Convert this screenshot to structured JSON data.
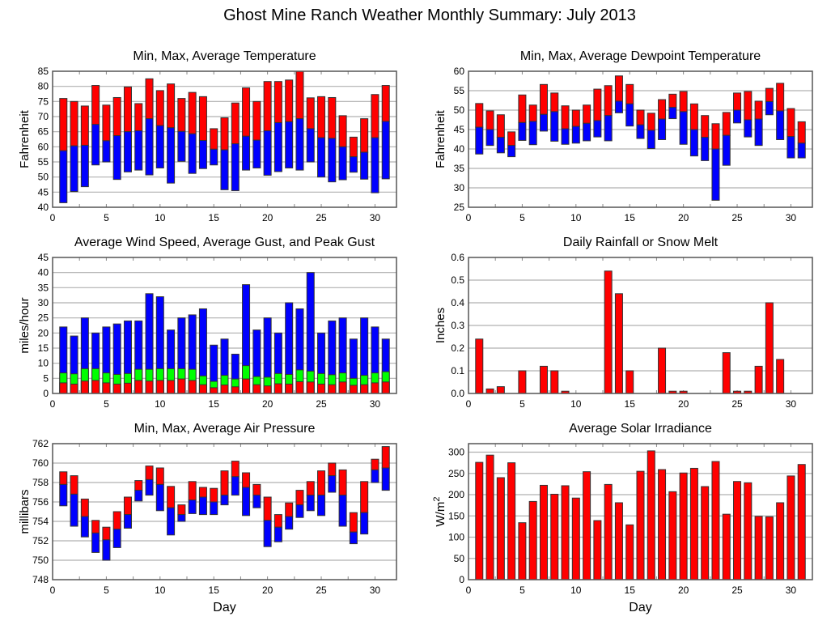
{
  "page": {
    "title": "Ghost Mine Ranch Weather Monthly Summary: July 2013"
  },
  "colors": {
    "red": "#ff0000",
    "blue": "#0000ff",
    "green": "#00ff00",
    "grid": "#b0b0b0",
    "frame": "#555555",
    "bar_outline": "#333333"
  },
  "chart_data": [
    {
      "id": "temperature",
      "type": "bar",
      "subtype": "floating-range",
      "title": "Min, Max, Average Temperature",
      "xlabel": "",
      "ylabel": "Fahrenheit",
      "xlim": [
        0,
        32
      ],
      "ylim": [
        40,
        85
      ],
      "xticks": [
        0,
        5,
        10,
        15,
        20,
        25,
        30
      ],
      "yticks": [
        40,
        45,
        50,
        55,
        60,
        65,
        70,
        75,
        80,
        85
      ],
      "grid": true,
      "x": [
        1,
        2,
        3,
        4,
        5,
        6,
        7,
        8,
        9,
        10,
        11,
        12,
        13,
        14,
        15,
        16,
        17,
        18,
        19,
        20,
        21,
        22,
        23,
        24,
        25,
        26,
        27,
        28,
        29,
        30,
        31
      ],
      "series": [
        {
          "name": "Max",
          "color": "red",
          "values": [
            76,
            75,
            73.5,
            80.3,
            73.8,
            76.3,
            79.8,
            74.3,
            82.5,
            78.6,
            80.8,
            76,
            78,
            76.6,
            66,
            69.6,
            74.5,
            79.5,
            75,
            81.6,
            81.6,
            82.1,
            85,
            76.2,
            76.6,
            76.3,
            70.3,
            63.2,
            69.3,
            77.3,
            80.3
          ]
        },
        {
          "name": "Average",
          "color": "blue",
          "values": [
            58.7,
            60.3,
            60.5,
            67.4,
            62,
            63.7,
            65,
            65.3,
            69.3,
            67,
            66.3,
            65.1,
            64.3,
            62.1,
            59.2,
            59,
            61,
            63.5,
            62.2,
            65.3,
            68,
            68.3,
            69.3,
            66,
            63,
            62.8,
            60,
            56.7,
            58.2,
            63,
            68.4
          ]
        },
        {
          "name": "Min",
          "color": "blue",
          "values": [
            41.5,
            45.2,
            46.8,
            54,
            55,
            49.2,
            51.7,
            52.3,
            50.7,
            53,
            48,
            55.2,
            51.2,
            52.8,
            54,
            45.8,
            45.5,
            52.3,
            53,
            50.6,
            51.8,
            53,
            52.3,
            55,
            50,
            48.4,
            49.1,
            51.6,
            49.3,
            44.8,
            49.4
          ]
        }
      ]
    },
    {
      "id": "dewpoint",
      "type": "bar",
      "subtype": "floating-range",
      "title": "Min, Max, Average Dewpoint Temperature",
      "xlabel": "",
      "ylabel": "Fahrenheit",
      "xlim": [
        0,
        32
      ],
      "ylim": [
        25,
        60
      ],
      "xticks": [
        0,
        5,
        10,
        15,
        20,
        25,
        30
      ],
      "yticks": [
        25,
        30,
        35,
        40,
        45,
        50,
        55,
        60
      ],
      "grid": true,
      "x": [
        1,
        2,
        3,
        4,
        5,
        6,
        7,
        8,
        9,
        10,
        11,
        12,
        13,
        14,
        15,
        16,
        17,
        18,
        19,
        20,
        21,
        22,
        23,
        24,
        25,
        26,
        27,
        28,
        29,
        30,
        31
      ],
      "series": [
        {
          "name": "Max",
          "color": "red",
          "values": [
            51.7,
            49.8,
            48.8,
            44.4,
            53.9,
            51.3,
            56.6,
            54.4,
            51.1,
            50,
            51.3,
            55.4,
            56.3,
            58.8,
            56.6,
            50,
            49.2,
            52.7,
            54.1,
            54.8,
            51.6,
            48.6,
            46.5,
            49.4,
            54.4,
            54.8,
            52.3,
            55.6,
            56.9,
            50.4,
            47
          ]
        },
        {
          "name": "Average",
          "color": "blue",
          "values": [
            45.6,
            45,
            43,
            40.9,
            46.8,
            47.1,
            48.9,
            49.6,
            45.2,
            45.8,
            46.6,
            47.3,
            48.6,
            52.3,
            51.6,
            46.2,
            44.8,
            47.7,
            50.7,
            49.6,
            45,
            43,
            40,
            43.5,
            50,
            47.5,
            47.7,
            52.2,
            49.8,
            43.2,
            41.5
          ]
        },
        {
          "name": "Min",
          "color": "blue",
          "values": [
            38.7,
            40.9,
            39,
            38,
            42.2,
            41.1,
            44.6,
            42,
            41.2,
            41.5,
            42.1,
            43.1,
            42.1,
            49.3,
            45.9,
            42.7,
            40.1,
            42.4,
            47.8,
            41.2,
            38.2,
            37,
            26.8,
            35.8,
            46.7,
            43.1,
            40.9,
            48.8,
            42.4,
            37.7,
            37.7
          ]
        }
      ]
    },
    {
      "id": "wind",
      "type": "bar",
      "subtype": "overlaid",
      "title": "Average Wind Speed, Average Gust, and Peak Gust",
      "xlabel": "",
      "ylabel": "miles/hour",
      "xlim": [
        0,
        32
      ],
      "ylim": [
        0,
        45
      ],
      "xticks": [
        0,
        5,
        10,
        15,
        20,
        25,
        30
      ],
      "yticks": [
        0,
        5,
        10,
        15,
        20,
        25,
        30,
        35,
        40,
        45
      ],
      "grid": true,
      "x": [
        1,
        2,
        3,
        4,
        5,
        6,
        7,
        8,
        9,
        10,
        11,
        12,
        13,
        14,
        15,
        16,
        17,
        18,
        19,
        20,
        21,
        22,
        23,
        24,
        25,
        26,
        27,
        28,
        29,
        30,
        31
      ],
      "series": [
        {
          "name": "Peak Gust",
          "color": "blue",
          "values": [
            22,
            19,
            25,
            20,
            22,
            23,
            24,
            24,
            33,
            32,
            21,
            25,
            26,
            28,
            16,
            18,
            13,
            36,
            21,
            25,
            20,
            30,
            28,
            40,
            20,
            24,
            25,
            18,
            25,
            22,
            18
          ]
        },
        {
          "name": "Average Gust",
          "color": "green",
          "values": [
            6.8,
            6.5,
            8.2,
            8.2,
            6.8,
            6.3,
            6.6,
            8,
            8,
            8.2,
            8.2,
            8.2,
            8,
            5.8,
            4,
            6,
            4.8,
            9.2,
            5.6,
            5.4,
            6.6,
            6.3,
            7.8,
            7.4,
            6.6,
            6.2,
            6.8,
            5,
            6,
            6.8,
            7.2
          ]
        },
        {
          "name": "Average Wind Speed",
          "color": "red",
          "values": [
            3.5,
            3.1,
            4.1,
            4.3,
            3.5,
            3.1,
            3.4,
            4.3,
            4.1,
            4.3,
            4.3,
            4.8,
            4.3,
            2.9,
            1.9,
            2.8,
            2.2,
            4.8,
            2.9,
            2.5,
            3.2,
            3.1,
            3.9,
            3.8,
            3.1,
            2.9,
            3.8,
            2.7,
            2.9,
            3.5,
            3.8
          ]
        }
      ]
    },
    {
      "id": "rainfall",
      "type": "bar",
      "title": "Daily Rainfall or Snow Melt",
      "xlabel": "",
      "ylabel": "Inches",
      "xlim": [
        0,
        32
      ],
      "ylim": [
        0,
        0.6
      ],
      "xticks": [
        0,
        5,
        10,
        15,
        20,
        25,
        30
      ],
      "yticks": [
        0,
        0.1,
        0.2,
        0.3,
        0.4,
        0.5,
        0.6
      ],
      "ytick_labels": [
        "0.0",
        "0.1",
        "0.2",
        "0.3",
        "0.4",
        "0.5",
        "0.6"
      ],
      "grid": true,
      "x": [
        1,
        2,
        3,
        4,
        5,
        6,
        7,
        8,
        9,
        10,
        11,
        12,
        13,
        14,
        15,
        16,
        17,
        18,
        19,
        20,
        21,
        22,
        23,
        24,
        25,
        26,
        27,
        28,
        29,
        30,
        31
      ],
      "series": [
        {
          "name": "Rainfall",
          "color": "red",
          "values": [
            0.24,
            0.02,
            0.03,
            0,
            0.1,
            0,
            0.12,
            0.1,
            0.01,
            0,
            0,
            0,
            0.54,
            0.44,
            0.1,
            0,
            0,
            0.2,
            0.01,
            0.01,
            0,
            0,
            0,
            0.18,
            0.01,
            0.01,
            0.12,
            0.4,
            0.15,
            0,
            0
          ]
        }
      ]
    },
    {
      "id": "pressure",
      "type": "bar",
      "subtype": "floating-range",
      "title": "Min, Max, Average Air Pressure",
      "xlabel": "Day",
      "ylabel": "millibars",
      "xlim": [
        0,
        32
      ],
      "ylim": [
        748,
        762
      ],
      "xticks": [
        0,
        5,
        10,
        15,
        20,
        25,
        30
      ],
      "yticks": [
        748,
        750,
        752,
        754,
        756,
        758,
        760,
        762
      ],
      "grid": true,
      "x": [
        1,
        2,
        3,
        4,
        5,
        6,
        7,
        8,
        9,
        10,
        11,
        12,
        13,
        14,
        15,
        16,
        17,
        18,
        19,
        20,
        21,
        22,
        23,
        24,
        25,
        26,
        27,
        28,
        29,
        30,
        31
      ],
      "series": [
        {
          "name": "Max",
          "color": "red",
          "values": [
            759.1,
            758.7,
            756.3,
            754.1,
            753.4,
            755,
            756.5,
            758.2,
            759.7,
            759.5,
            757.6,
            755.7,
            758.1,
            757.5,
            757.4,
            759.2,
            760.2,
            759,
            757.8,
            756.5,
            754.7,
            755.9,
            757.2,
            758.1,
            759.2,
            760,
            759.3,
            754.9,
            758.1,
            760.4,
            761.7
          ]
        },
        {
          "name": "Average",
          "color": "blue",
          "values": [
            757.8,
            756.8,
            754.5,
            752.8,
            752.1,
            753.2,
            754.7,
            757.2,
            758.3,
            757.8,
            755.4,
            754.7,
            756.2,
            756.5,
            756,
            756.7,
            758.6,
            757.5,
            756.7,
            754.1,
            753.4,
            754.5,
            755.7,
            756.7,
            756.7,
            758.7,
            756.7,
            752.9,
            754.9,
            759.3,
            759.5
          ]
        },
        {
          "name": "Min",
          "color": "blue",
          "values": [
            755.6,
            753.5,
            752.4,
            750.8,
            750,
            751.3,
            753.3,
            756.1,
            756.7,
            755.1,
            752.6,
            754,
            754.8,
            754.7,
            754.7,
            755.7,
            756.7,
            754.6,
            755.4,
            751.4,
            751.9,
            753.2,
            754.4,
            755.1,
            754.6,
            757,
            753.5,
            751.7,
            752.7,
            758,
            757.2
          ]
        }
      ]
    },
    {
      "id": "solar",
      "type": "bar",
      "title": "Average Solar Irradiance",
      "xlabel": "Day",
      "ylabel": "W/m2",
      "ylabel_base": "W/m",
      "ylabel_sup": "2",
      "xlim": [
        0,
        32
      ],
      "ylim": [
        0,
        320
      ],
      "xticks": [
        0,
        5,
        10,
        15,
        20,
        25,
        30
      ],
      "yticks": [
        0,
        50,
        100,
        150,
        200,
        250,
        300
      ],
      "grid": true,
      "x": [
        1,
        2,
        3,
        4,
        5,
        6,
        7,
        8,
        9,
        10,
        11,
        12,
        13,
        14,
        15,
        16,
        17,
        18,
        19,
        20,
        21,
        22,
        23,
        24,
        25,
        26,
        27,
        28,
        29,
        30,
        31
      ],
      "series": [
        {
          "name": "Solar Irradiance",
          "color": "red",
          "values": [
            276,
            293,
            240,
            275,
            134,
            184,
            222,
            201,
            221,
            192,
            254,
            139,
            224,
            181,
            129,
            255,
            303,
            259,
            207,
            251,
            262,
            219,
            278,
            154,
            231,
            228,
            149,
            148,
            181,
            244,
            271
          ]
        }
      ]
    }
  ]
}
